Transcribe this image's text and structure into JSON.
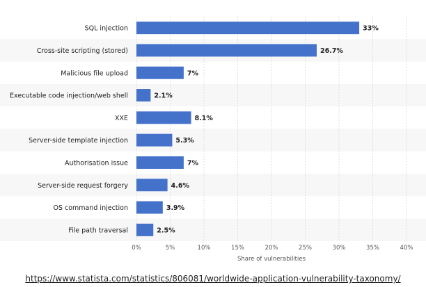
{
  "chart_data": {
    "type": "bar",
    "orientation": "horizontal",
    "categories": [
      "SQL injection",
      "Cross-site scripting (stored)",
      "Malicious file upload",
      "Executable code injection/web shell",
      "XXE",
      "Server-side template injection",
      "Authorisation issue",
      "Server-side request forgery",
      "OS command injection",
      "File path traversal"
    ],
    "values": [
      33,
      26.7,
      7,
      2.1,
      8.1,
      5.3,
      7,
      4.6,
      3.9,
      2.5
    ],
    "value_labels": [
      "33%",
      "26.7%",
      "7%",
      "2.1%",
      "8.1%",
      "5.3%",
      "7%",
      "4.6%",
      "3.9%",
      "2.5%"
    ],
    "xlabel": "Share of vulnerabilities",
    "xlim": [
      0,
      40
    ],
    "x_ticks": [
      0,
      5,
      10,
      15,
      20,
      25,
      30,
      35,
      40
    ],
    "x_tick_labels": [
      "0%",
      "5%",
      "10%",
      "15%",
      "20%",
      "25%",
      "30%",
      "35%",
      "40%"
    ],
    "grid": true,
    "bar_color": "#4472ca",
    "band_color": "#f7f7f7"
  },
  "footer": {
    "source_url": "https://www.statista.com/statistics/806081/worldwide-application-vulnerability-taxonomy/"
  }
}
